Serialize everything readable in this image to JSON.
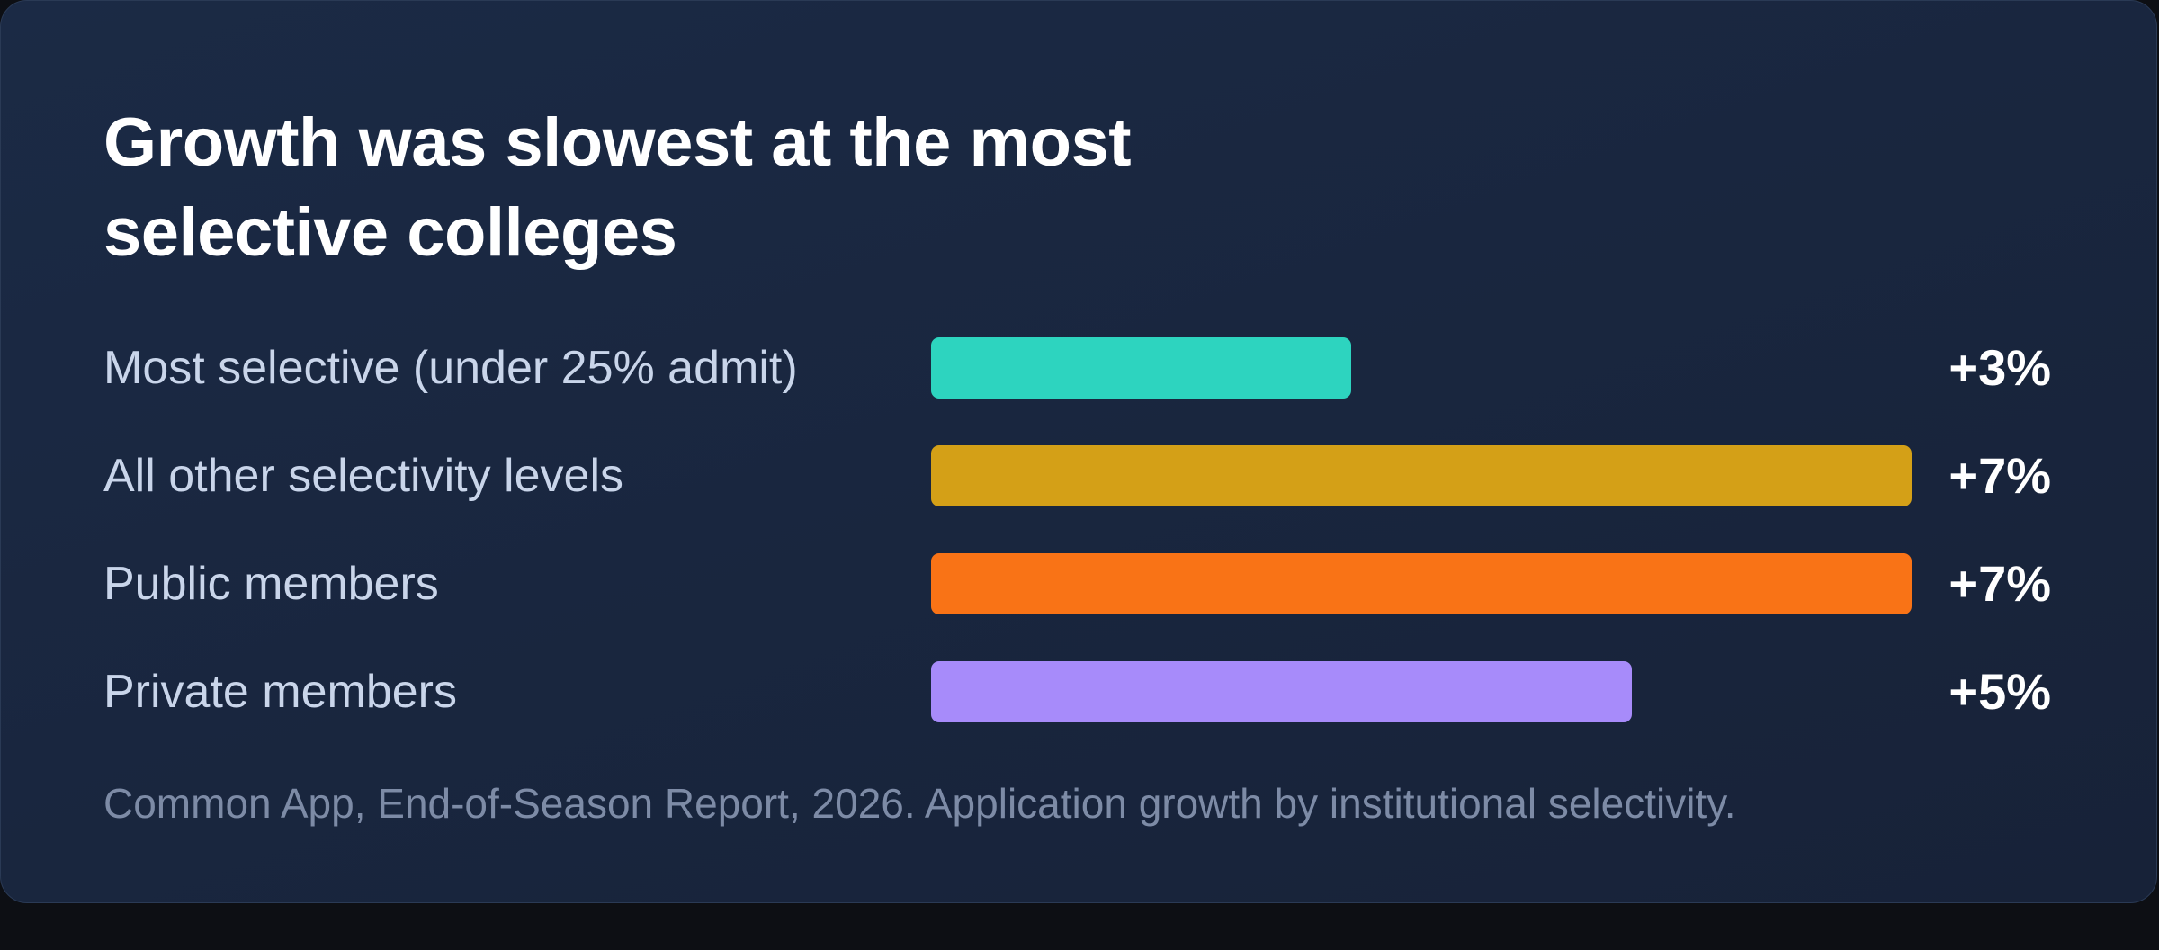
{
  "chart_data": {
    "type": "bar",
    "orientation": "horizontal",
    "title": "Growth was slowest at the most selective colleges",
    "categories": [
      "Most selective (under 25% admit)",
      "All other selectivity levels",
      "Public members",
      "Private members"
    ],
    "values": [
      3,
      7,
      7,
      5
    ],
    "value_labels": [
      "+3%",
      "+7%",
      "+7%",
      "+5%"
    ],
    "colors": [
      "#2dd4bf",
      "#d4a017",
      "#f97316",
      "#a78bfa"
    ],
    "xlim": [
      0,
      7
    ],
    "grid": false,
    "legend": "none",
    "source": "Common App, End-of-Season Report, 2026. Application growth by institutional selectivity."
  }
}
